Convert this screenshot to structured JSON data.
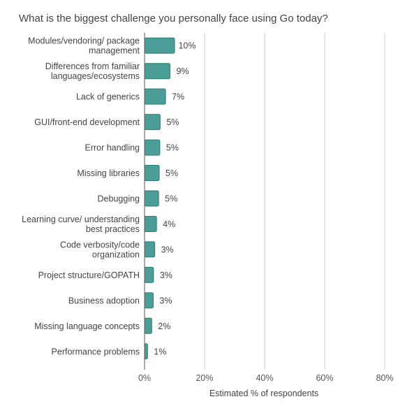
{
  "chart_data": {
    "type": "bar",
    "orientation": "horizontal",
    "title": "What is the biggest challenge you personally face using Go today?",
    "xlabel": "Estimated % of respondents",
    "ylabel": "",
    "xlim": [
      0,
      85
    ],
    "xticks": [
      0,
      20,
      40,
      60,
      80
    ],
    "xtick_labels": [
      "0%",
      "20%",
      "40%",
      "60%",
      "80%"
    ],
    "grid": "vertical",
    "bar_color": "#4A9E97",
    "bar_edge_color": "#2E7F78",
    "categories": [
      [
        "Modules/vendoring/ package",
        "management"
      ],
      [
        "Differences from familiar",
        "languages/ecosystems"
      ],
      [
        "Lack of generics"
      ],
      [
        "GUI/front-end development"
      ],
      [
        "Error handling"
      ],
      [
        "Missing libraries"
      ],
      [
        "Debugging"
      ],
      [
        "Learning curve/ understanding",
        "best practices"
      ],
      [
        "Code verbosity/code",
        "organization"
      ],
      [
        "Project structure/GOPATH"
      ],
      [
        "Business adoption"
      ],
      [
        "Missing language concepts"
      ],
      [
        "Performance problems"
      ]
    ],
    "values": [
      10,
      8.5,
      7,
      5.2,
      5.1,
      4.9,
      4.7,
      4,
      3.4,
      3,
      2.9,
      2.4,
      1
    ],
    "value_labels": [
      "10%",
      "9%",
      "7%",
      "5%",
      "5%",
      "5%",
      "5%",
      "4%",
      "3%",
      "3%",
      "3%",
      "2%",
      "1%"
    ]
  }
}
